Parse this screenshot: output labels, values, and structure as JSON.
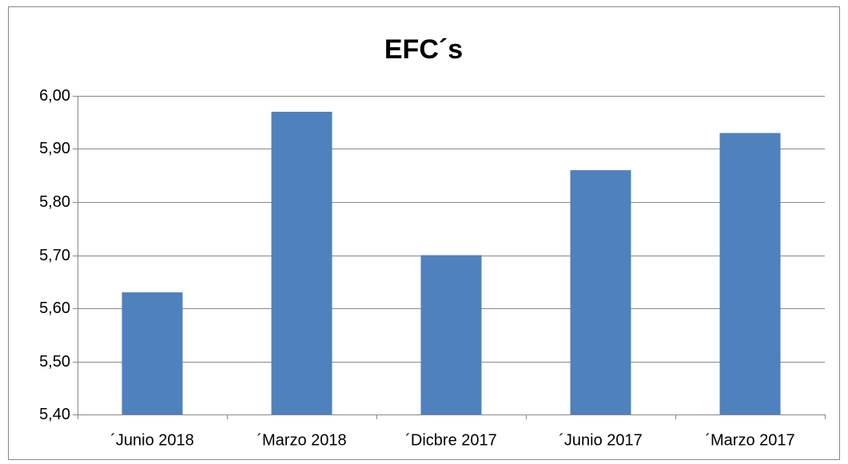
{
  "chart_data": {
    "type": "bar",
    "title": "EFC´s",
    "categories": [
      "´Junio 2018",
      "´Marzo 2018",
      "´Dicbre 2017",
      "´Junio 2017",
      "´Marzo 2017"
    ],
    "values": [
      5.63,
      5.97,
      5.7,
      5.86,
      5.93
    ],
    "color": "#4f81bd",
    "ylim": [
      5.4,
      6.0
    ],
    "yticks": [
      {
        "value": 5.4,
        "label": "5,40"
      },
      {
        "value": 5.5,
        "label": "5,50"
      },
      {
        "value": 5.6,
        "label": "5,60"
      },
      {
        "value": 5.7,
        "label": "5,70"
      },
      {
        "value": 5.8,
        "label": "5,80"
      },
      {
        "value": 5.9,
        "label": "5,90"
      },
      {
        "value": 6.0,
        "label": "6,00"
      }
    ],
    "grid": true
  }
}
